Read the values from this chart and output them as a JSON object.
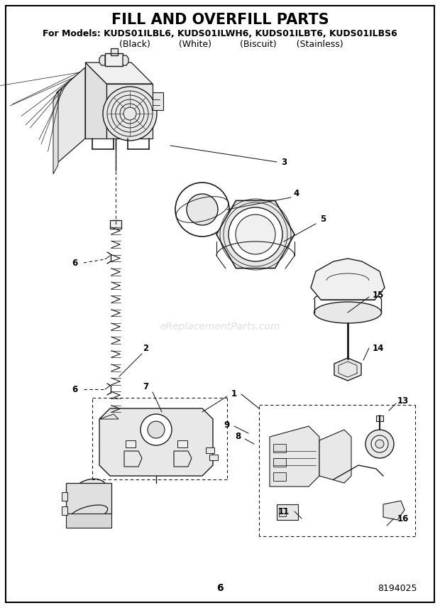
{
  "title": "FILL AND OVERFILL PARTS",
  "subtitle_line1": "For Models: KUDS01ILBL6, KUDS01ILWH6, KUDS01ILBT6, KUDS01ILBS6",
  "subtitle_line2": "        (Black)          (White)          (Biscuit)       (Stainless)",
  "page_number": "6",
  "doc_number": "8194025",
  "watermark": "eReplacementParts.com",
  "bg_color": "#ffffff",
  "border_color": "#000000",
  "title_fontsize": 15,
  "subtitle1_fontsize": 9,
  "subtitle2_fontsize": 9,
  "fig_width": 6.2,
  "fig_height": 8.56,
  "dpi": 100
}
